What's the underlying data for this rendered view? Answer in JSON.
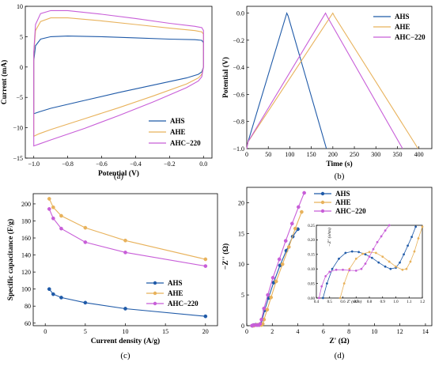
{
  "colors": {
    "AHS": "#1f5aa8",
    "AHE": "#e8b25b",
    "AHC-220": "#c85ed8"
  },
  "panels": [
    "(a)",
    "(b)",
    "(c)",
    "(d)"
  ],
  "chart_data": [
    {
      "panel": "(a)",
      "type": "line",
      "xlabel": "Potential (V)",
      "ylabel": "Current (mA)",
      "xlim": [
        -1.05,
        0.05
      ],
      "ylim": [
        -15,
        10
      ],
      "xticks": [
        -1.0,
        -0.8,
        -0.6,
        -0.4,
        -0.2,
        0.0
      ],
      "xtick_labels": [
        "−1.0",
        "−0.8",
        "−0.6",
        "−0.4",
        "−0.2",
        "0.0"
      ],
      "yticks": [
        -15,
        -10,
        -5,
        0,
        5,
        10
      ],
      "ytick_labels": [
        "−15",
        "−10",
        "−5",
        "0",
        "5",
        "10"
      ],
      "legend": "bottom-right",
      "series": [
        {
          "name": "AHS",
          "color": "#1f5aa8",
          "x": [
            -1.0,
            -0.99,
            -0.96,
            -0.9,
            -0.8,
            -0.6,
            -0.4,
            -0.2,
            -0.05,
            -0.01,
            0.0,
            0.0,
            -0.01,
            -0.03,
            -0.1,
            -0.3,
            -0.5,
            -0.7,
            -0.9,
            -0.97,
            -1.0,
            -1.0
          ],
          "y": [
            1.0,
            3.5,
            4.6,
            5.0,
            5.1,
            5.0,
            4.8,
            4.6,
            4.5,
            4.4,
            4.0,
            0.0,
            -0.8,
            -1.2,
            -1.8,
            -3.0,
            -4.2,
            -5.5,
            -6.8,
            -7.4,
            -7.7,
            1.0
          ]
        },
        {
          "name": "AHE",
          "color": "#e8b25b",
          "x": [
            -1.0,
            -0.99,
            -0.96,
            -0.9,
            -0.8,
            -0.6,
            -0.4,
            -0.2,
            -0.05,
            -0.01,
            0.0,
            0.0,
            -0.01,
            -0.03,
            -0.1,
            -0.3,
            -0.5,
            -0.7,
            -0.9,
            -0.97,
            -1.0,
            -1.0
          ],
          "y": [
            2.0,
            6.0,
            7.5,
            8.1,
            8.1,
            7.6,
            7.0,
            6.4,
            6.0,
            5.8,
            5.4,
            0.0,
            -1.2,
            -1.8,
            -2.8,
            -4.8,
            -6.7,
            -8.5,
            -10.3,
            -11.0,
            -11.4,
            2.0
          ]
        },
        {
          "name": "AHC−220",
          "color": "#c85ed8",
          "x": [
            -1.0,
            -0.99,
            -0.96,
            -0.9,
            -0.8,
            -0.6,
            -0.4,
            -0.2,
            -0.05,
            -0.01,
            0.0,
            0.0,
            -0.01,
            -0.03,
            -0.1,
            -0.3,
            -0.5,
            -0.7,
            -0.9,
            -0.97,
            -1.0,
            -1.0
          ],
          "y": [
            2.5,
            7.0,
            8.8,
            9.3,
            9.3,
            8.7,
            8.0,
            7.2,
            6.7,
            6.5,
            6.0,
            0.0,
            -1.6,
            -2.3,
            -3.4,
            -5.8,
            -8.0,
            -10.1,
            -12.0,
            -12.7,
            -13.0,
            2.5
          ]
        }
      ]
    },
    {
      "panel": "(b)",
      "type": "line",
      "xlabel": "Time (s)",
      "ylabel": "Potential (V)",
      "xlim": [
        0,
        430
      ],
      "ylim": [
        -1.0,
        0.05
      ],
      "xticks": [
        0,
        50,
        100,
        150,
        200,
        250,
        300,
        350,
        400
      ],
      "xtick_labels": [
        "0",
        "50",
        "100",
        "150",
        "200",
        "250",
        "300",
        "350",
        "400"
      ],
      "yticks": [
        -1.0,
        -0.8,
        -0.6,
        -0.4,
        -0.2,
        0.0
      ],
      "ytick_labels": [
        "−1.0",
        "−0.8",
        "−0.6",
        "−0.4",
        "−0.2",
        "0.0"
      ],
      "legend": "top-right",
      "series": [
        {
          "name": "AHS",
          "color": "#1f5aa8",
          "x": [
            0,
            3,
            93,
            96,
            185
          ],
          "y": [
            -1.0,
            -0.95,
            0.0,
            -0.02,
            -1.0
          ]
        },
        {
          "name": "AHE",
          "color": "#e8b25b",
          "x": [
            0,
            3,
            200,
            203,
            398
          ],
          "y": [
            -1.0,
            -0.95,
            0.0,
            -0.02,
            -1.0
          ]
        },
        {
          "name": "AHC−220",
          "color": "#c85ed8",
          "x": [
            0,
            3,
            183,
            186,
            362
          ],
          "y": [
            -1.0,
            -0.95,
            0.0,
            -0.02,
            -1.0
          ]
        }
      ]
    },
    {
      "panel": "(c)",
      "type": "line",
      "xlabel": "Current density (A/g)",
      "ylabel": "Specific capacitance (F/g)",
      "xlim": [
        -1.5,
        21.5
      ],
      "ylim": [
        57,
        212
      ],
      "xticks": [
        0,
        5,
        10,
        15,
        20
      ],
      "xtick_labels": [
        "0",
        "5",
        "10",
        "15",
        "20"
      ],
      "yticks": [
        60,
        80,
        100,
        120,
        140,
        160,
        180,
        200
      ],
      "ytick_labels": [
        "60",
        "80",
        "100",
        "120",
        "140",
        "160",
        "180",
        "200"
      ],
      "legend": "bottom-right",
      "series": [
        {
          "name": "AHS",
          "color": "#1f5aa8",
          "x": [
            0.5,
            1,
            2,
            5,
            10,
            20
          ],
          "y": [
            100,
            94,
            90,
            84,
            77,
            68
          ]
        },
        {
          "name": "AHE",
          "color": "#e8b25b",
          "x": [
            0.5,
            1,
            2,
            5,
            10,
            20
          ],
          "y": [
            206,
            196,
            186,
            172,
            157,
            135
          ]
        },
        {
          "name": "AHC−220",
          "color": "#c85ed8",
          "x": [
            0.5,
            1,
            2,
            5,
            10,
            20
          ],
          "y": [
            194,
            183,
            171,
            155,
            143,
            127
          ]
        }
      ]
    },
    {
      "panel": "(d)",
      "type": "scatter",
      "xlabel": "Z' (Ω)",
      "ylabel": "−Z'' (Ω)",
      "xlim": [
        0,
        14.5
      ],
      "ylim": [
        0,
        22.5
      ],
      "xticks": [
        0,
        2,
        4,
        6,
        8,
        10,
        12,
        14
      ],
      "xtick_labels": [
        "0",
        "2",
        "4",
        "6",
        "8",
        "10",
        "12",
        "14"
      ],
      "yticks": [
        0,
        5,
        10,
        15,
        20
      ],
      "ytick_labels": [
        "0",
        "5",
        "10",
        "15",
        "20"
      ],
      "legend": "top-left",
      "series": [
        {
          "name": "AHS",
          "color": "#1f5aa8",
          "x": [
            0.45,
            0.55,
            0.7,
            0.85,
            1.0,
            1.1,
            1.2,
            1.4,
            1.7,
            2.1,
            2.6,
            3.1,
            3.6,
            4.0
          ],
          "y": [
            0.0,
            0.1,
            0.15,
            0.12,
            0.12,
            0.3,
            1.0,
            2.5,
            4.5,
            7.0,
            9.8,
            12.2,
            14.5,
            15.7
          ]
        },
        {
          "name": "AHE",
          "color": "#e8b25b",
          "x": [
            0.55,
            0.7,
            0.85,
            1.0,
            1.15,
            1.25,
            1.35,
            1.6,
            1.9,
            2.3,
            2.8,
            3.3,
            3.8,
            4.3
          ],
          "y": [
            0.0,
            0.12,
            0.14,
            0.12,
            0.11,
            0.3,
            1.0,
            2.6,
            4.6,
            7.2,
            10.0,
            12.8,
            15.8,
            18.5
          ]
        },
        {
          "name": "AHC−220",
          "color": "#c85ed8",
          "x": [
            0.4,
            0.5,
            0.65,
            0.8,
            0.95,
            1.05,
            1.15,
            1.35,
            1.65,
            2.05,
            2.55,
            3.05,
            3.55,
            4.05,
            4.5
          ],
          "y": [
            0.0,
            0.09,
            0.1,
            0.09,
            0.11,
            0.3,
            1.0,
            2.8,
            5.0,
            7.8,
            10.8,
            13.8,
            16.6,
            19.3,
            21.6
          ]
        }
      ],
      "inset": {
        "xlabel": "Z' (ohm)",
        "ylabel": "−Z'' (ohm)",
        "xlim": [
          0.4,
          1.2
        ],
        "ylim": [
          0,
          0.25
        ],
        "xticks": [
          0.4,
          0.5,
          0.6,
          0.7,
          0.8,
          0.9,
          1.0,
          1.1,
          1.2
        ],
        "xtick_labels": [
          "0.4",
          "0.5",
          "0.6",
          "0.7",
          "0.8",
          "0.9",
          "1.0",
          "1.1",
          "1.2"
        ],
        "yticks": [
          0.0,
          0.05,
          0.1,
          0.15,
          0.2,
          0.25
        ],
        "ytick_labels": [
          "0.00",
          "0.05",
          "0.10",
          "0.15",
          "0.20",
          "0.25"
        ],
        "series": [
          {
            "name": "AHS",
            "color": "#1f5aa8",
            "x": [
              0.45,
              0.48,
              0.52,
              0.57,
              0.62,
              0.67,
              0.72,
              0.77,
              0.82,
              0.87,
              0.92,
              0.96,
              1.0,
              1.03,
              1.06,
              1.09,
              1.12,
              1.15
            ],
            "y": [
              0.0,
              0.05,
              0.1,
              0.135,
              0.155,
              0.16,
              0.158,
              0.15,
              0.138,
              0.122,
              0.108,
              0.1,
              0.104,
              0.122,
              0.15,
              0.18,
              0.21,
              0.245
            ]
          },
          {
            "name": "AHE",
            "color": "#e8b25b",
            "x": [
              0.58,
              0.61,
              0.65,
              0.7,
              0.75,
              0.8,
              0.85,
              0.9,
              0.95,
              1.0,
              1.05,
              1.08,
              1.11,
              1.14,
              1.17,
              1.2
            ],
            "y": [
              0.0,
              0.05,
              0.1,
              0.135,
              0.152,
              0.158,
              0.155,
              0.142,
              0.125,
              0.108,
              0.097,
              0.1,
              0.125,
              0.16,
              0.205,
              0.245
            ]
          },
          {
            "name": "AHC−220",
            "color": "#c85ed8",
            "x": [
              0.42,
              0.44,
              0.47,
              0.5,
              0.55,
              0.6,
              0.65,
              0.7,
              0.74,
              0.77,
              0.8,
              0.83,
              0.86,
              0.89,
              0.92,
              0.95
            ],
            "y": [
              0.0,
              0.04,
              0.075,
              0.09,
              0.097,
              0.097,
              0.095,
              0.094,
              0.1,
              0.118,
              0.142,
              0.168,
              0.192,
              0.212,
              0.232,
              0.25
            ]
          }
        ]
      }
    }
  ]
}
